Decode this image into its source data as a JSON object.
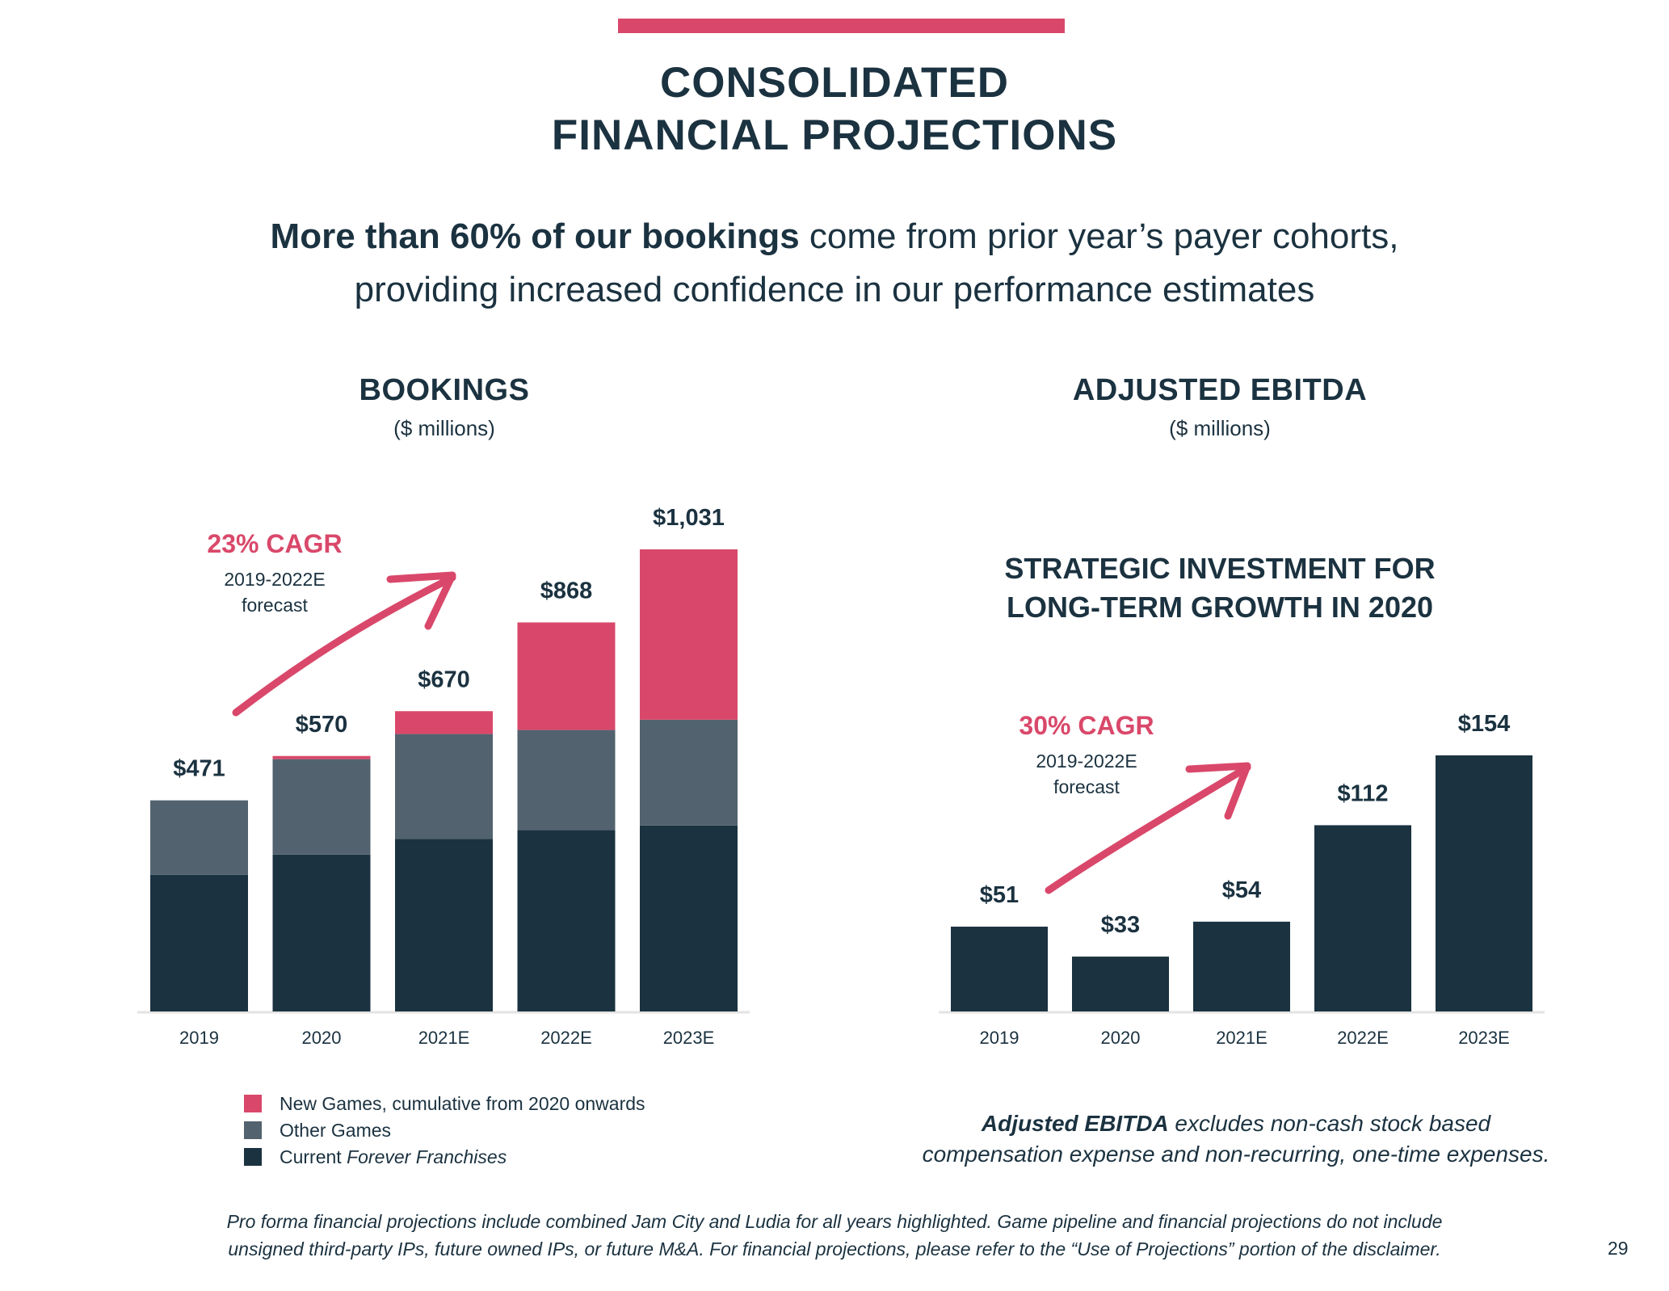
{
  "page": {
    "title_line1": "CONSOLIDATED",
    "title_line2": "FINANCIAL PROJECTIONS",
    "headline_bold": "More than 60% of our bookings",
    "headline_rest": " come from prior year’s payer cohorts,",
    "headline_line2": "providing increased confidence in our performance estimates",
    "page_number": "29",
    "footnote_line1": "Pro forma financial projections include combined Jam City and Ludia for all years highlighted. Game pipeline and financial projections do not include",
    "footnote_line2": "unsigned third-party IPs, future owned IPs, or future M&A. For financial projections, please refer to the “Use of Projections” portion of the disclaimer."
  },
  "colors": {
    "accent": "#d9486a",
    "dark": "#1b3240",
    "mid": "#52636f",
    "axis": "#e3e3e3"
  },
  "bookings_panel": {
    "title": "BOOKINGS",
    "unit": "($ millions)",
    "cagr": "23% CAGR",
    "cagr_range": "2019-2022E",
    "cagr_note": "forecast"
  },
  "ebitda_panel": {
    "title": "ADJUSTED EBITDA",
    "unit": "($ millions)",
    "strategic_line1": "STRATEGIC INVESTMENT FOR",
    "strategic_line2": "LONG-TERM GROWTH IN 2020",
    "cagr": "30% CAGR",
    "cagr_range": "2019-2022E",
    "cagr_note": "forecast",
    "note_bold": "Adjusted EBITDA",
    "note_rest": " excludes non-cash stock based",
    "note_line2": "compensation expense and non-recurring, one-time expenses."
  },
  "chart_data": [
    {
      "type": "bar",
      "stacked": true,
      "title": "BOOKINGS",
      "subtitle": "($ millions)",
      "categories": [
        "2019",
        "2020",
        "2021E",
        "2022E",
        "2023E"
      ],
      "series": [
        {
          "name": "Current Forever Franchises",
          "color": "#1b3240",
          "values": [
            305,
            350,
            385,
            405,
            415
          ]
        },
        {
          "name": "Other Games",
          "color": "#52636f",
          "values": [
            166,
            213,
            234,
            223,
            236
          ]
        },
        {
          "name": "New Games, cumulative from 2020 onwards",
          "color": "#d9486a",
          "values": [
            0,
            7,
            51,
            240,
            380
          ]
        }
      ],
      "totals": [
        471,
        570,
        670,
        868,
        1031
      ],
      "total_labels": [
        "$471",
        "$570",
        "$670",
        "$868",
        "$1,031"
      ],
      "legend": [
        {
          "text": "New Games, cumulative from 2020 onwards",
          "italic": "",
          "color": "#d9486a"
        },
        {
          "text": "Other Games",
          "italic": "",
          "color": "#52636f"
        },
        {
          "text": "Current ",
          "italic": "Forever Franchises",
          "color": "#1b3240"
        }
      ],
      "ylim": [
        0,
        1031
      ],
      "grid": false
    },
    {
      "type": "bar",
      "title": "ADJUSTED EBITDA",
      "subtitle": "($ millions)",
      "categories": [
        "2019",
        "2020",
        "2021E",
        "2022E",
        "2023E"
      ],
      "values": [
        51,
        33,
        54,
        112,
        154
      ],
      "value_labels": [
        "$51",
        "$33",
        "$54",
        "$112",
        "$154"
      ],
      "color": "#1b3240",
      "ylim": [
        0,
        154
      ],
      "grid": false
    }
  ]
}
